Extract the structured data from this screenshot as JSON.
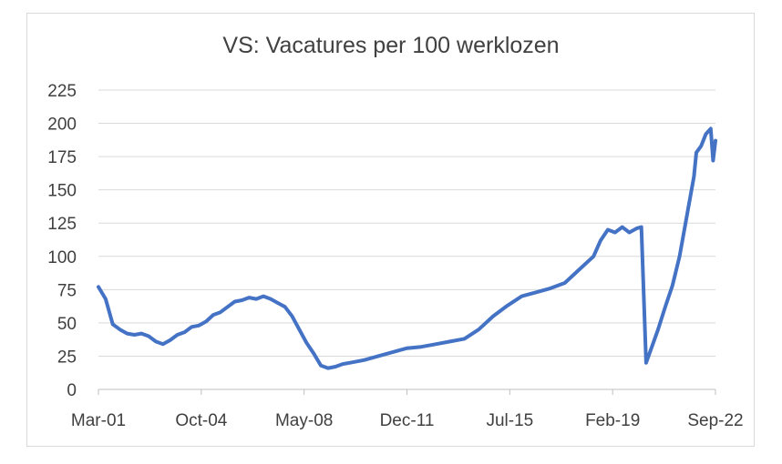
{
  "chart_data": {
    "type": "line",
    "title": "VS: Vacatures per 100 werklozen",
    "xlabel": "",
    "ylabel": "",
    "ylim": [
      0,
      225
    ],
    "y_ticks": [
      0,
      25,
      50,
      75,
      100,
      125,
      150,
      175,
      200,
      225
    ],
    "x_ticks": [
      "Mar-01",
      "Oct-04",
      "May-08",
      "Dec-11",
      "Jul-15",
      "Feb-19",
      "Sep-22"
    ],
    "grid": true,
    "legend": "none",
    "line_color": "#4472c4",
    "series": [
      {
        "x": [
          "2001-03",
          "2001-06",
          "2001-09",
          "2001-12",
          "2002-03",
          "2002-06",
          "2002-09",
          "2002-12",
          "2003-03",
          "2003-06",
          "2003-09",
          "2003-12",
          "2004-03",
          "2004-06",
          "2004-09",
          "2004-12",
          "2005-03",
          "2005-06",
          "2005-09",
          "2005-12",
          "2006-03",
          "2006-06",
          "2006-09",
          "2006-12",
          "2007-03",
          "2007-06",
          "2007-09",
          "2007-12",
          "2008-03",
          "2008-06",
          "2008-09",
          "2008-12",
          "2009-03",
          "2009-06",
          "2009-09",
          "2009-12",
          "2010-06",
          "2010-12",
          "2011-06",
          "2011-12",
          "2012-06",
          "2012-12",
          "2013-06",
          "2013-12",
          "2014-06",
          "2014-12",
          "2015-06",
          "2015-12",
          "2016-06",
          "2016-12",
          "2017-06",
          "2017-12",
          "2018-06",
          "2018-09",
          "2018-12",
          "2019-03",
          "2019-06",
          "2019-09",
          "2019-12",
          "2020-02",
          "2020-04",
          "2020-06",
          "2020-09",
          "2020-12",
          "2021-03",
          "2021-06",
          "2021-09",
          "2021-12",
          "2022-01",
          "2022-03",
          "2022-05",
          "2022-07",
          "2022-08",
          "2022-09"
        ],
        "values": [
          77,
          68,
          49,
          45,
          42,
          41,
          42,
          40,
          36,
          34,
          37,
          41,
          43,
          47,
          48,
          51,
          56,
          58,
          62,
          66,
          67,
          69,
          68,
          70,
          68,
          65,
          62,
          55,
          45,
          35,
          27,
          18,
          16,
          17,
          19,
          20,
          22,
          25,
          28,
          31,
          32,
          34,
          36,
          38,
          45,
          55,
          63,
          70,
          73,
          76,
          80,
          90,
          100,
          112,
          120,
          118,
          122,
          118,
          121,
          122,
          20,
          30,
          45,
          62,
          78,
          100,
          130,
          160,
          178,
          183,
          192,
          196,
          172,
          187
        ]
      }
    ]
  }
}
